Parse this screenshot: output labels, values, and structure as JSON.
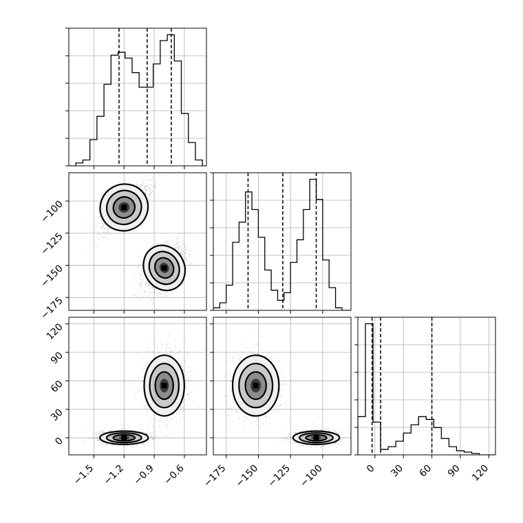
{
  "chart_data": {
    "type": "corner",
    "parameters": [
      {
        "id": "p1",
        "range": [
          -1.75,
          -0.38
        ],
        "ticks": [
          -1.5,
          -1.2,
          -0.9,
          -0.6
        ],
        "tick_labels": [
          "−1.5",
          "−1.2",
          "−0.9",
          "−0.6"
        ],
        "quantiles": [
          -1.25,
          -0.97,
          -0.73
        ],
        "histogram": {
          "edges": [
            -1.75,
            -1.68,
            -1.61,
            -1.54,
            -1.47,
            -1.4,
            -1.33,
            -1.26,
            -1.19,
            -1.12,
            -1.05,
            -0.98,
            -0.91,
            -0.84,
            -0.77,
            -0.7,
            -0.63,
            -0.56,
            -0.49,
            -0.42,
            -0.38
          ],
          "counts": [
            0,
            1,
            2,
            9,
            17,
            28,
            38,
            39,
            37,
            32,
            27,
            27,
            35,
            43,
            45,
            36,
            18,
            8,
            2,
            0
          ]
        }
      },
      {
        "id": "p2",
        "range": [
          -185,
          -78
        ],
        "ticks": [
          -175,
          -150,
          -125,
          -100
        ],
        "tick_labels": [
          "−175",
          "−150",
          "−125",
          "−100"
        ],
        "quantiles": [
          -158,
          -131,
          -105
        ],
        "histogram": {
          "edges": [
            -185,
            -180,
            -175,
            -170,
            -165,
            -160,
            -155,
            -150,
            -145,
            -140,
            -135,
            -130,
            -125,
            -120,
            -115,
            -110,
            -105,
            -100,
            -95,
            -90,
            -85,
            -78
          ],
          "counts": [
            1,
            3,
            10,
            27,
            35,
            47,
            40,
            29,
            16,
            8,
            4,
            7,
            19,
            28,
            40,
            52,
            44,
            20,
            9,
            1,
            0
          ]
        }
      },
      {
        "id": "p3",
        "range": [
          -18,
          127
        ],
        "ticks": [
          0,
          30,
          60,
          90,
          120
        ],
        "tick_labels": [
          "0",
          "30",
          "60",
          "90",
          "120"
        ],
        "quantiles": [
          -3,
          6,
          60
        ],
        "histogram": {
          "edges": [
            -18,
            -10,
            -2,
            6,
            14,
            22,
            30,
            38,
            46,
            54,
            62,
            70,
            78,
            86,
            94,
            102,
            110,
            118,
            127
          ],
          "counts": [
            14,
            48,
            12,
            2,
            3,
            5,
            8,
            11,
            14,
            13,
            10,
            6,
            3,
            1.5,
            1,
            0.5,
            0,
            0
          ]
        }
      }
    ],
    "modes": [
      {
        "p1": -1.2,
        "p2": -105,
        "p3": 0
      },
      {
        "p1": -0.8,
        "p2": -152,
        "p3": 55
      }
    ],
    "grid": true
  }
}
